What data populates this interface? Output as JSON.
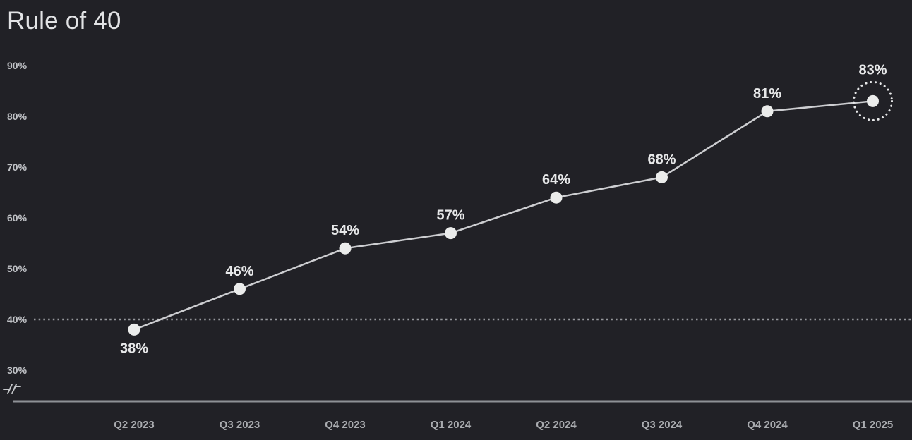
{
  "header": {
    "title": "Rule of 40"
  },
  "colors": {
    "background": "#212126",
    "title_text": "#e2e3e5",
    "ytick_label": "#bfc1c5",
    "xtick_label": "#a9abaf",
    "series_line": "#cdced1",
    "point_fill": "#ebeceb",
    "data_label": "#e7e8e9",
    "threshold_line": "#96989c",
    "axis_line": "#8e9196",
    "highlight_ring": "#e7e8e9",
    "axis_break": "#c6c8cb"
  },
  "icons": {
    "axis_break": "axis-break-icon"
  },
  "chart_data": {
    "type": "line",
    "title": "Rule of 40",
    "categories": [
      "Q2 2023",
      "Q3 2023",
      "Q4 2023",
      "Q1 2024",
      "Q2 2024",
      "Q3 2024",
      "Q4 2024",
      "Q1 2025"
    ],
    "values": [
      38,
      46,
      54,
      57,
      64,
      68,
      81,
      83
    ],
    "data_labels": [
      "38%",
      "46%",
      "54%",
      "57%",
      "64%",
      "68%",
      "81%",
      "83%"
    ],
    "xlabel": "",
    "ylabel": "",
    "yticks": [
      90,
      80,
      70,
      60,
      50,
      40,
      30
    ],
    "ytick_labels": [
      "90%",
      "80%",
      "70%",
      "60%",
      "50%",
      "40%",
      "30%"
    ],
    "ylim": [
      30,
      90
    ],
    "y_axis_break": true,
    "grid": false,
    "legend": null,
    "threshold": {
      "value": 40,
      "style": "dotted"
    },
    "highlight": {
      "index": 7,
      "style": "dashed-circle"
    },
    "first_label_below": true
  }
}
